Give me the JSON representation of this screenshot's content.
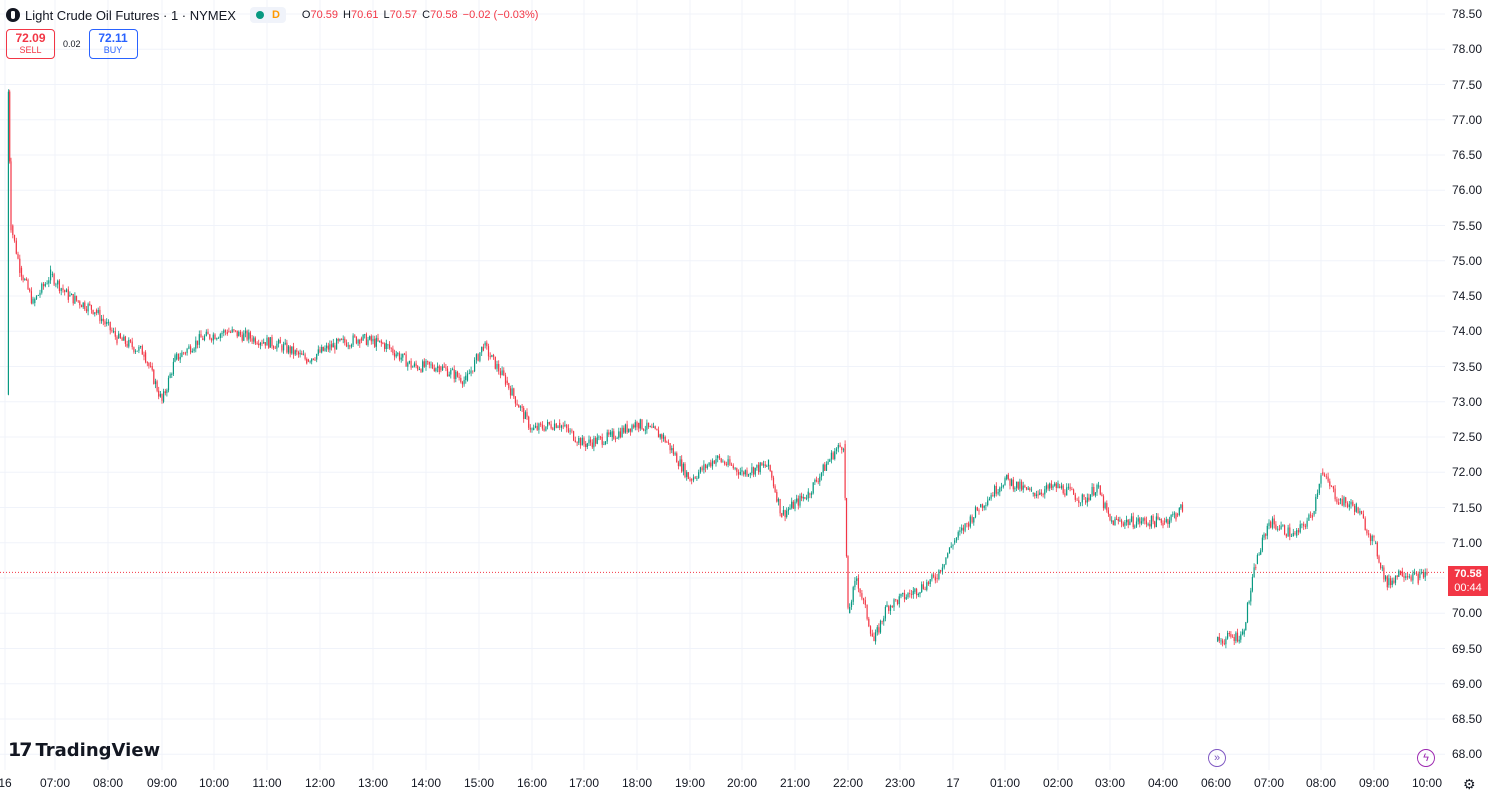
{
  "legend": {
    "title": "Light Crude Oil Futures · 1 · NYMEX",
    "interval_badge": "D",
    "open_label": "O",
    "open": "70.59",
    "high_label": "H",
    "high": "70.61",
    "low_label": "L",
    "low": "70.57",
    "close_label": "C",
    "close": "70.58",
    "change": "−0.02 (−0.03%)"
  },
  "trade": {
    "sell_price": "72.09",
    "sell_label": "SELL",
    "spread": "0.02",
    "buy_price": "72.11",
    "buy_label": "BUY"
  },
  "price_tag": {
    "price": "70.58",
    "countdown": "00:44"
  },
  "branding": {
    "mark": "𝟭𝟳",
    "name": "TradingView"
  },
  "colors": {
    "up": "#089981",
    "down": "#f23645",
    "grid": "#f0f3fa"
  },
  "icons": {
    "left_event": "fast-forward-icon",
    "right_event": "lightning-icon",
    "settings": "gear-icon"
  },
  "chart_data": {
    "type": "candlestick",
    "symbol": "Light Crude Oil Futures",
    "interval": "1",
    "exchange": "NYMEX",
    "ylim": [
      68.0,
      78.5
    ],
    "y_ticks": [
      "78.50",
      "78.00",
      "77.50",
      "77.00",
      "76.50",
      "76.00",
      "75.50",
      "75.00",
      "74.50",
      "74.00",
      "73.50",
      "73.00",
      "72.50",
      "72.00",
      "71.50",
      "71.00",
      "70.50",
      "70.00",
      "69.50",
      "69.00",
      "68.50",
      "68.00"
    ],
    "x_ticks": [
      "16",
      "07:00",
      "08:00",
      "09:00",
      "10:00",
      "11:00",
      "12:00",
      "13:00",
      "14:00",
      "15:00",
      "16:00",
      "17:00",
      "18:00",
      "19:00",
      "20:00",
      "21:00",
      "22:00",
      "23:00",
      "17",
      "01:00",
      "02:00",
      "03:00",
      "04:00",
      "06:00",
      "07:00",
      "08:00",
      "09:00",
      "10:00"
    ],
    "grid": true,
    "last_price": 70.58,
    "price_path": [
      {
        "t": "06:05",
        "p": 73.1
      },
      {
        "t": "06:07",
        "p": 77.4
      },
      {
        "t": "06:10",
        "p": 75.5
      },
      {
        "t": "06:20",
        "p": 74.9
      },
      {
        "t": "06:35",
        "p": 74.4
      },
      {
        "t": "06:55",
        "p": 74.8
      },
      {
        "t": "07:15",
        "p": 74.5
      },
      {
        "t": "07:45",
        "p": 74.3
      },
      {
        "t": "08:10",
        "p": 73.9
      },
      {
        "t": "08:40",
        "p": 73.7
      },
      {
        "t": "09:00",
        "p": 73.0
      },
      {
        "t": "09:15",
        "p": 73.6
      },
      {
        "t": "09:45",
        "p": 73.9
      },
      {
        "t": "10:15",
        "p": 74.0
      },
      {
        "t": "10:45",
        "p": 73.9
      },
      {
        "t": "11:15",
        "p": 73.8
      },
      {
        "t": "11:45",
        "p": 73.6
      },
      {
        "t": "12:15",
        "p": 73.8
      },
      {
        "t": "12:45",
        "p": 73.9
      },
      {
        "t": "13:15",
        "p": 73.8
      },
      {
        "t": "13:45",
        "p": 73.5
      },
      {
        "t": "14:15",
        "p": 73.5
      },
      {
        "t": "14:45",
        "p": 73.3
      },
      {
        "t": "15:05",
        "p": 73.8
      },
      {
        "t": "15:30",
        "p": 73.3
      },
      {
        "t": "16:00",
        "p": 72.6
      },
      {
        "t": "16:30",
        "p": 72.7
      },
      {
        "t": "17:00",
        "p": 72.4
      },
      {
        "t": "17:30",
        "p": 72.5
      },
      {
        "t": "18:00",
        "p": 72.7
      },
      {
        "t": "18:30",
        "p": 72.5
      },
      {
        "t": "19:00",
        "p": 71.9
      },
      {
        "t": "19:30",
        "p": 72.2
      },
      {
        "t": "20:00",
        "p": 72.0
      },
      {
        "t": "20:30",
        "p": 72.1
      },
      {
        "t": "20:45",
        "p": 71.4
      },
      {
        "t": "21:15",
        "p": 71.7
      },
      {
        "t": "21:45",
        "p": 72.3
      },
      {
        "t": "21:55",
        "p": 72.4
      },
      {
        "t": "22:00",
        "p": 70.0
      },
      {
        "t": "22:10",
        "p": 70.5
      },
      {
        "t": "22:30",
        "p": 69.6
      },
      {
        "t": "22:45",
        "p": 70.1
      },
      {
        "t": "23:15",
        "p": 70.3
      },
      {
        "t": "23:40",
        "p": 70.5
      },
      {
        "t": "00:00",
        "p": 71.0
      },
      {
        "t": "00:30",
        "p": 71.5
      },
      {
        "t": "01:00",
        "p": 71.9
      },
      {
        "t": "01:30",
        "p": 71.7
      },
      {
        "t": "02:00",
        "p": 71.8
      },
      {
        "t": "02:30",
        "p": 71.6
      },
      {
        "t": "02:45",
        "p": 71.8
      },
      {
        "t": "03:00",
        "p": 71.3
      },
      {
        "t": "03:30",
        "p": 71.3
      },
      {
        "t": "04:00",
        "p": 71.3
      },
      {
        "t": "04:30",
        "p": 71.4
      },
      {
        "t": "04:45",
        "p": 71.5
      },
      {
        "t": "06:00",
        "p": 69.6
      },
      {
        "t": "06:30",
        "p": 69.7
      },
      {
        "t": "06:45",
        "p": 70.7
      },
      {
        "t": "07:00",
        "p": 71.3
      },
      {
        "t": "07:30",
        "p": 71.1
      },
      {
        "t": "07:50",
        "p": 71.4
      },
      {
        "t": "08:00",
        "p": 72.0
      },
      {
        "t": "08:20",
        "p": 71.6
      },
      {
        "t": "08:40",
        "p": 71.5
      },
      {
        "t": "09:00",
        "p": 71.0
      },
      {
        "t": "09:15",
        "p": 70.4
      },
      {
        "t": "09:30",
        "p": 70.6
      },
      {
        "t": "09:50",
        "p": 70.5
      },
      {
        "t": "10:00",
        "p": 70.58
      }
    ]
  }
}
